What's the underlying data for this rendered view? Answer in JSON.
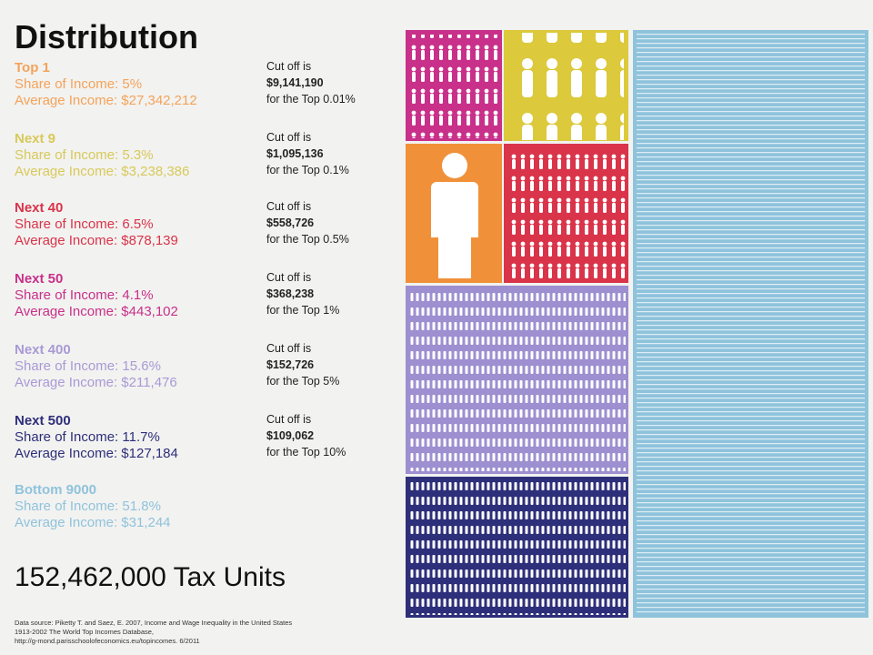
{
  "header": {
    "title": "Distribution"
  },
  "groups": [
    {
      "name": "Top 1",
      "share": "Share of Income: 5%",
      "average": "Average Income: $27,342,212",
      "cutoff": {
        "label": "Cut off is",
        "value": "$9,141,190",
        "note": "for the Top 0.01%"
      }
    },
    {
      "name": "Next 9",
      "share": "Share of Income: 5.3%",
      "average": "Average Income: $3,238,386",
      "cutoff": {
        "label": "Cut off is",
        "value": "$1,095,136",
        "note": "for the Top 0.1%"
      }
    },
    {
      "name": "Next 40",
      "share": "Share of Income: 6.5%",
      "average": "Average Income: $878,139",
      "cutoff": {
        "label": "Cut off is",
        "value": "$558,726",
        "note": "for the Top 0.5%"
      }
    },
    {
      "name": "Next 50",
      "share": "Share of Income: 4.1%",
      "average": "Average Income: $443,102",
      "cutoff": {
        "label": "Cut off is",
        "value": "$368,238",
        "note": "for the Top 1%"
      }
    },
    {
      "name": "Next 400",
      "share": "Share of Income: 15.6%",
      "average": "Average Income: $211,476",
      "cutoff": {
        "label": "Cut off is",
        "value": "$152,726",
        "note": "for the Top 5%"
      }
    },
    {
      "name": "Next 500",
      "share": "Share of Income: 11.7%",
      "average": "Average Income: $127,184",
      "cutoff": {
        "label": "Cut off is",
        "value": "$109,062",
        "note": "for the Top 10%"
      }
    },
    {
      "name": "Bottom 9000",
      "share": "Share of Income: 51.8%",
      "average": "Average Income: $31,244"
    }
  ],
  "total": "152,462,000 Tax Units",
  "source": [
    "Data source: Piketty T. and Saez, E. 2007, Income and Wage Inequality in the United States",
    "1913-2002 The World Top Incomes Database,",
    "http://g-mond.parisschoolofeconomics.eu/topincomes. 6/2011"
  ]
}
